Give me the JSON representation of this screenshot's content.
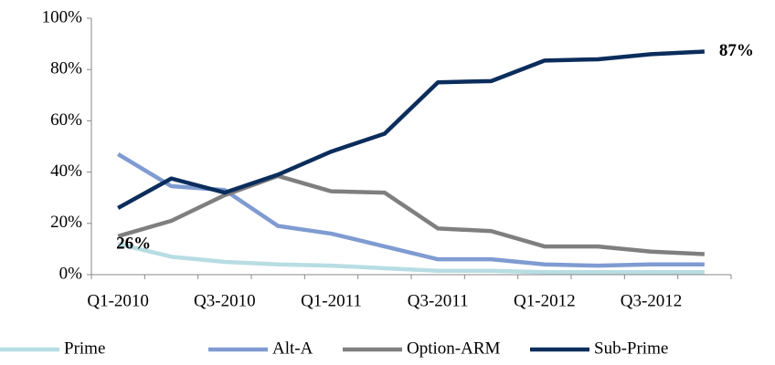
{
  "chart_data": {
    "type": "line",
    "categories": [
      "Q1-2010",
      null,
      "Q3-2010",
      null,
      "Q1-2011",
      null,
      "Q3-2011",
      null,
      "Q1-2012",
      null,
      "Q3-2012",
      null
    ],
    "series": [
      {
        "name": "Prime",
        "color": "#b7dde3",
        "values": [
          12,
          7,
          5,
          4,
          3.5,
          2.5,
          1.5,
          1.5,
          1,
          1,
          1,
          1
        ]
      },
      {
        "name": "Alt-A",
        "color": "#7f9bd2",
        "values": [
          47,
          34.5,
          33,
          19,
          16,
          11,
          6,
          6,
          4,
          3.5,
          4,
          4
        ]
      },
      {
        "name": "Option-ARM",
        "color": "#7f7f7f",
        "values": [
          15,
          21,
          31,
          38.5,
          32.5,
          32,
          18,
          17,
          11,
          11,
          9,
          8
        ]
      },
      {
        "name": "Sub-Prime",
        "color": "#0b2d5c",
        "values": [
          26,
          37.5,
          32,
          39,
          48,
          55,
          75,
          75.5,
          83.5,
          84,
          86,
          87
        ],
        "value_labels": [
          "26%",
          null,
          null,
          null,
          null,
          null,
          null,
          null,
          null,
          null,
          null,
          "87%"
        ]
      }
    ],
    "ylim": [
      0,
      100
    ],
    "yticks": [
      {
        "value": 0,
        "label": "0%"
      },
      {
        "value": 20,
        "label": "20%"
      },
      {
        "value": 40,
        "label": "40%"
      },
      {
        "value": 60,
        "label": "60%"
      },
      {
        "value": 80,
        "label": "80%"
      },
      {
        "value": 100,
        "label": "100%"
      }
    ],
    "grid": false,
    "legend": "bottom"
  }
}
